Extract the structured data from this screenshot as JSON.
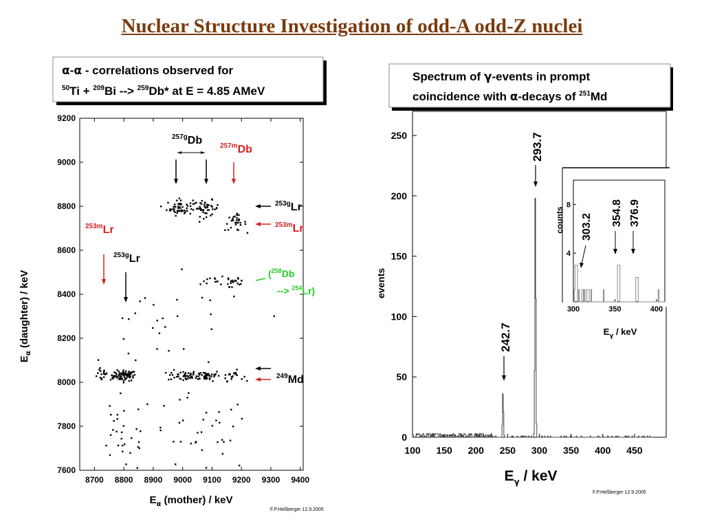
{
  "slide": {
    "title": "Nuclear Structure Investigation of odd-A odd-Z nuclei"
  },
  "chart_data": [
    {
      "type": "scatter",
      "title_lines": [
        [
          "α",
          "-",
          "α",
          " - correlations observed for"
        ],
        [
          "50",
          "Ti + ",
          "209",
          "Bi --> ",
          "259",
          "Db* at E = 4.85 AMeV"
        ]
      ],
      "xlabel_parts": [
        "E",
        "α",
        " (mother) / keV"
      ],
      "ylabel_parts": [
        "E",
        "α",
        " (daughter) / keV"
      ],
      "xlim": [
        8650,
        9410
      ],
      "ylim": [
        7600,
        9200
      ],
      "xticks": [
        8700,
        8800,
        8900,
        9000,
        9100,
        9200,
        9300,
        9400
      ],
      "yticks": [
        7600,
        7800,
        8000,
        8200,
        8400,
        8600,
        8800,
        9000,
        9200
      ],
      "credit": "F.P.Heßberger 12.9.2005",
      "clusters": [
        {
          "x": 8805,
          "y": 8030,
          "sx": 18,
          "sy": 12,
          "n": 70
        },
        {
          "x": 8735,
          "y": 8030,
          "sx": 25,
          "sy": 14,
          "n": 25
        },
        {
          "x": 9000,
          "y": 8030,
          "sx": 25,
          "sy": 12,
          "n": 40
        },
        {
          "x": 9080,
          "y": 8030,
          "sx": 25,
          "sy": 12,
          "n": 45
        },
        {
          "x": 9170,
          "y": 8030,
          "sx": 18,
          "sy": 12,
          "n": 20
        },
        {
          "x": 8990,
          "y": 8795,
          "sx": 22,
          "sy": 18,
          "n": 55
        },
        {
          "x": 9080,
          "y": 8790,
          "sx": 22,
          "sy": 18,
          "n": 45
        },
        {
          "x": 9180,
          "y": 8725,
          "sx": 18,
          "sy": 18,
          "n": 30
        },
        {
          "x": 9090,
          "y": 8460,
          "sx": 20,
          "sy": 12,
          "n": 8
        },
        {
          "x": 9170,
          "y": 8460,
          "sx": 25,
          "sy": 25,
          "n": 25
        },
        {
          "x": 8800,
          "y": 7760,
          "sx": 50,
          "sy": 90,
          "n": 30
        },
        {
          "x": 9060,
          "y": 7760,
          "sx": 90,
          "sy": 90,
          "n": 35
        },
        {
          "x": 8950,
          "y": 8220,
          "sx": 150,
          "sy": 120,
          "n": 30
        }
      ],
      "annotations": [
        {
          "sup": "257g",
          "name": "Db",
          "color": "#000000"
        },
        {
          "sup": "257m",
          "name": "Db",
          "color": "#d42020"
        },
        {
          "sup": "253g",
          "name": "Lr",
          "color": "#000000"
        },
        {
          "sup": "253m",
          "name": "Lr",
          "color": "#d42020"
        },
        {
          "sup": "253m",
          "name": "Lr",
          "color": "#d42020"
        },
        {
          "sup": "253g",
          "name": "Lr",
          "color": "#000000"
        },
        {
          "sup": "249",
          "name": "Md",
          "color": "#000000"
        }
      ],
      "decay_label": {
        "sup1": "258",
        "name1": "Db",
        "arrow": "-->",
        "sup2": "254",
        "name2": "Lr",
        "color": "#22cc22"
      },
      "arrow_colors": {
        "black": "#000000",
        "red": "#d42020",
        "green": "#22cc22"
      }
    },
    {
      "type": "line",
      "title_lines": [
        [
          "Spectrum of ",
          "γ",
          "-events in prompt"
        ],
        [
          "coincidence with ",
          "α",
          "-decays of ",
          "251",
          "Md"
        ]
      ],
      "xlabel_parts": [
        "E",
        "γ",
        " / keV"
      ],
      "ylabel": "events",
      "xlim": [
        100,
        500
      ],
      "ylim": [
        0,
        270
      ],
      "xticks": [
        100,
        150,
        200,
        250,
        300,
        350,
        400,
        450
      ],
      "yticks": [
        0,
        50,
        100,
        150,
        200,
        250
      ],
      "peaks": [
        {
          "x": 242.7,
          "y": 37,
          "label": "242.7"
        },
        {
          "x": 293.7,
          "y": 205,
          "label": "293.7"
        }
      ],
      "baseline_max": 4,
      "credit": "F.P.Heßberger 12.9.2005",
      "inset": {
        "xlim": [
          300,
          410
        ],
        "ylim": [
          0,
          10
        ],
        "xticks": [
          300,
          350,
          400
        ],
        "yticks": [
          4,
          8
        ],
        "ylabel": "counts",
        "xlabel_parts": [
          "E",
          "γ",
          " / keV"
        ],
        "peaks": [
          {
            "x": 303.2,
            "y": 3,
            "label": "303.2"
          },
          {
            "x": 354.8,
            "y": 3,
            "label": "354.8"
          },
          {
            "x": 376.9,
            "y": 2,
            "label": "376.9"
          }
        ]
      }
    }
  ]
}
